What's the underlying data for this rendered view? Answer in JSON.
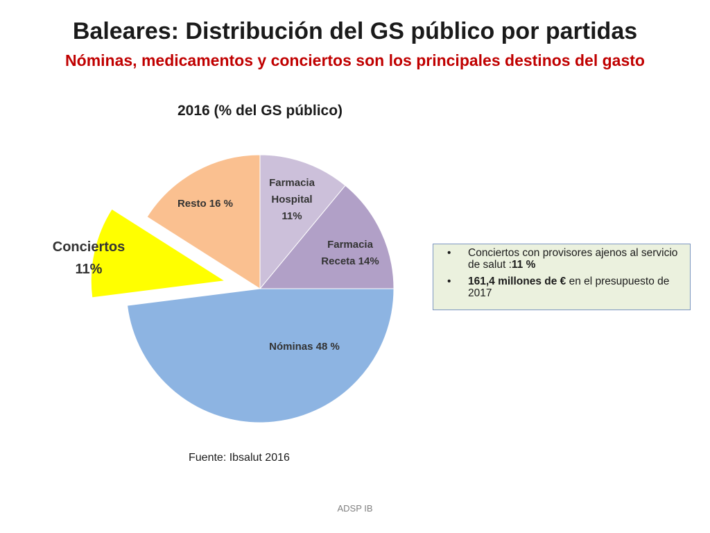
{
  "title": "Baleares:  Distribución del GS público por partidas",
  "subtitle": "Nóminas, medicamentos y conciertos son los principales destinos del gasto",
  "chart_data": {
    "type": "pie",
    "title": "2016 (% del GS público)",
    "slices": [
      {
        "name": "Farmacia Hospital",
        "value": 11,
        "label_lines": [
          "Farmacia",
          "Hospital",
          "11%"
        ],
        "color": "#ccc0da",
        "exploded": false
      },
      {
        "name": "Farmacia Receta",
        "value": 14,
        "label_lines": [
          "Farmacia",
          "Receta 14%"
        ],
        "color": "#b1a0c7",
        "exploded": false
      },
      {
        "name": "Nóminas",
        "value": 48,
        "label_lines": [
          "Nóminas 48 %"
        ],
        "color": "#8db4e2",
        "exploded": false
      },
      {
        "name": "Conciertos",
        "value": 11,
        "label_lines": [
          "Conciertos",
          "11%"
        ],
        "color": "#ffff00",
        "exploded": true
      },
      {
        "name": "Resto",
        "value": 16,
        "label_lines": [
          "Resto 16 %"
        ],
        "color": "#fac090",
        "exploded": false
      }
    ]
  },
  "info_box": {
    "items": [
      {
        "text": "Conciertos  con provisores ajenos al servicio de salut :",
        "bold": "11 %",
        "after": ""
      },
      {
        "text": "",
        "bold": "161,4 millones de €",
        "after": " en  el presupuesto de 2017"
      }
    ]
  },
  "source": "Fuente:  Ibsalut 2016",
  "footer": "ADSP IB"
}
